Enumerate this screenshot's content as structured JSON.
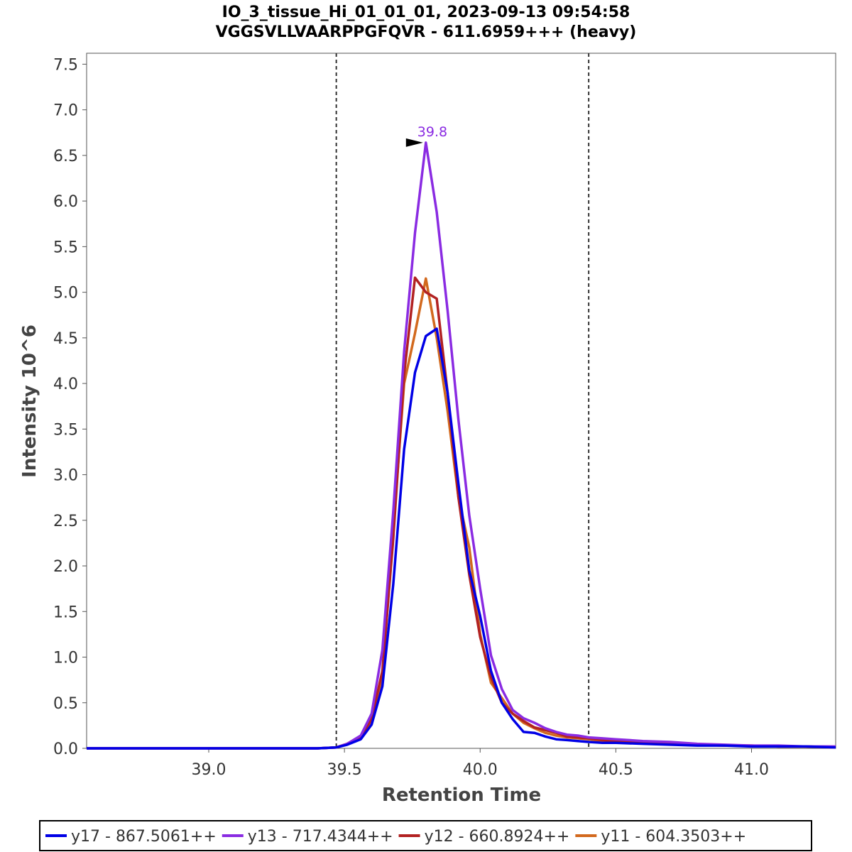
{
  "chart_data": {
    "type": "line",
    "title": "IO_3_tissue_Hi_01_01_01, 2023-09-13 09:54:58",
    "subtitle": "VGGSVLLVAARPPGFQVR - 611.6959+++ (heavy)",
    "xlabel": "Retention Time",
    "ylabel": "Intensity 10^6",
    "xlim": [
      38.55,
      41.31
    ],
    "ylim": [
      0,
      7.62
    ],
    "x_ticks": [
      39.0,
      39.5,
      40.0,
      40.5,
      41.0
    ],
    "y_ticks": [
      0.0,
      0.5,
      1.0,
      1.5,
      2.0,
      2.5,
      3.0,
      3.5,
      4.0,
      4.5,
      5.0,
      5.5,
      6.0,
      6.5,
      7.0,
      7.5
    ],
    "integration_bounds": [
      39.47,
      40.4
    ],
    "peak_annotation": {
      "x": 39.8,
      "y": 6.64,
      "label": "39.8",
      "color": "#8a2be2"
    },
    "x": [
      38.55,
      38.8,
      39.0,
      39.2,
      39.4,
      39.47,
      39.51,
      39.56,
      39.6,
      39.64,
      39.68,
      39.72,
      39.76,
      39.8,
      39.84,
      39.88,
      39.92,
      39.96,
      40.0,
      40.04,
      40.08,
      40.12,
      40.16,
      40.2,
      40.24,
      40.28,
      40.32,
      40.36,
      40.4,
      40.45,
      40.5,
      40.6,
      40.7,
      40.8,
      40.9,
      41.0,
      41.1,
      41.2,
      41.31
    ],
    "series": [
      {
        "name": "y17 - 867.5061++",
        "color": "#0000e6",
        "values": [
          0,
          0,
          0,
          0,
          0,
          0.01,
          0.04,
          0.1,
          0.26,
          0.68,
          1.8,
          3.28,
          4.12,
          4.52,
          4.6,
          3.9,
          2.9,
          1.95,
          1.45,
          0.85,
          0.5,
          0.32,
          0.18,
          0.17,
          0.13,
          0.1,
          0.09,
          0.08,
          0.07,
          0.06,
          0.06,
          0.05,
          0.04,
          0.03,
          0.03,
          0.02,
          0.02,
          0.02,
          0.01
        ]
      },
      {
        "name": "y13 - 717.4344++",
        "color": "#8a2be2",
        "values": [
          0,
          0,
          0,
          0,
          0,
          0.01,
          0.05,
          0.14,
          0.38,
          1.08,
          2.6,
          4.35,
          5.65,
          6.64,
          5.88,
          4.8,
          3.6,
          2.55,
          1.75,
          1.02,
          0.65,
          0.42,
          0.33,
          0.28,
          0.22,
          0.18,
          0.15,
          0.14,
          0.12,
          0.11,
          0.1,
          0.08,
          0.07,
          0.05,
          0.04,
          0.03,
          0.03,
          0.02,
          0.02
        ]
      },
      {
        "name": "y12 - 660.8924++",
        "color": "#b22222",
        "values": [
          0,
          0,
          0,
          0,
          0,
          0.01,
          0.05,
          0.13,
          0.32,
          0.85,
          2.3,
          4.1,
          5.16,
          5.0,
          4.93,
          3.9,
          2.75,
          1.9,
          1.22,
          0.78,
          0.5,
          0.38,
          0.3,
          0.23,
          0.2,
          0.17,
          0.13,
          0.12,
          0.11,
          0.09,
          0.08,
          0.06,
          0.05,
          0.04,
          0.03,
          0.03,
          0.02,
          0.02,
          0.01
        ]
      },
      {
        "name": "y11 - 604.3503++",
        "color": "#d2691e",
        "values": [
          0,
          0,
          0,
          0,
          0,
          0.01,
          0.05,
          0.12,
          0.3,
          0.78,
          2.4,
          4.0,
          4.55,
          5.15,
          4.5,
          3.7,
          2.75,
          2.2,
          1.25,
          0.72,
          0.55,
          0.38,
          0.28,
          0.22,
          0.17,
          0.14,
          0.12,
          0.11,
          0.1,
          0.08,
          0.07,
          0.06,
          0.05,
          0.04,
          0.03,
          0.03,
          0.02,
          0.02,
          0.01
        ]
      }
    ],
    "legend_position": "bottom"
  }
}
